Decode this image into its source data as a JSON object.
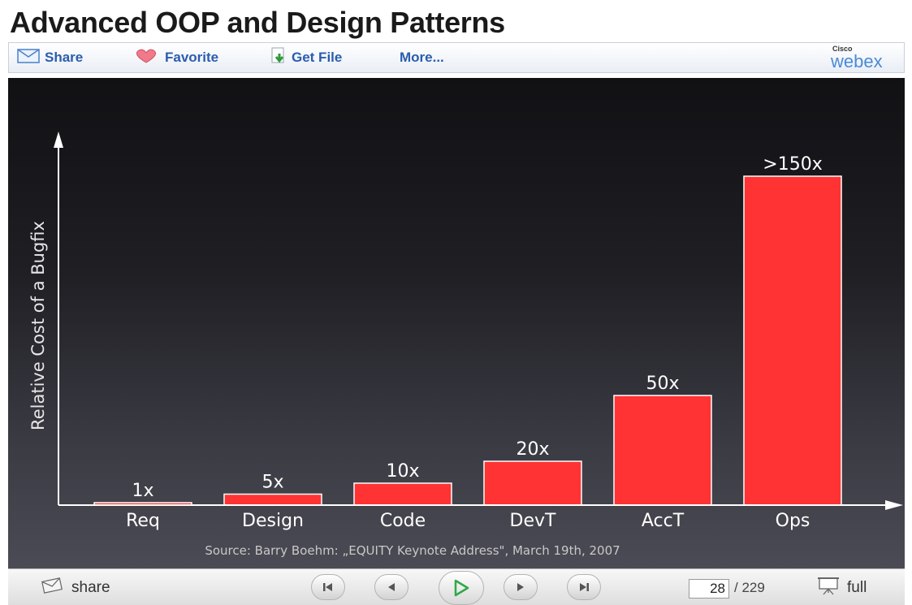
{
  "page": {
    "title": "Advanced OOP and Design Patterns"
  },
  "toolbar": {
    "items": [
      {
        "label": "Share",
        "icon": "envelope-icon"
      },
      {
        "label": "Favorite",
        "icon": "heart-icon"
      },
      {
        "label": "Get File",
        "icon": "download-icon"
      },
      {
        "label": "More..."
      }
    ],
    "brand": {
      "small": "Cisco",
      "name": "webex",
      "color": "#4a8bd6"
    }
  },
  "chart_data": {
    "type": "bar",
    "title": "",
    "ylabel": "Relative Cost of a Bugfix",
    "xlabel": "",
    "categories": [
      "Req",
      "Design",
      "Code",
      "DevT",
      "AccT",
      "Ops"
    ],
    "values": [
      1,
      5,
      10,
      20,
      50,
      150
    ],
    "data_labels": [
      "1x",
      "5x",
      "10x",
      "20x",
      "50x",
      ">150x"
    ],
    "ylim": [
      0,
      160
    ],
    "grid": false,
    "bar_color": "#ff3333",
    "source": "Source: Barry Boehm: „EQUITY Keynote Address\", March 19th, 2007"
  },
  "controls": {
    "share_label": "share",
    "current_page": "28",
    "total_pages": "/ 229",
    "full_label": "full",
    "play_color": "#2fa84a"
  }
}
